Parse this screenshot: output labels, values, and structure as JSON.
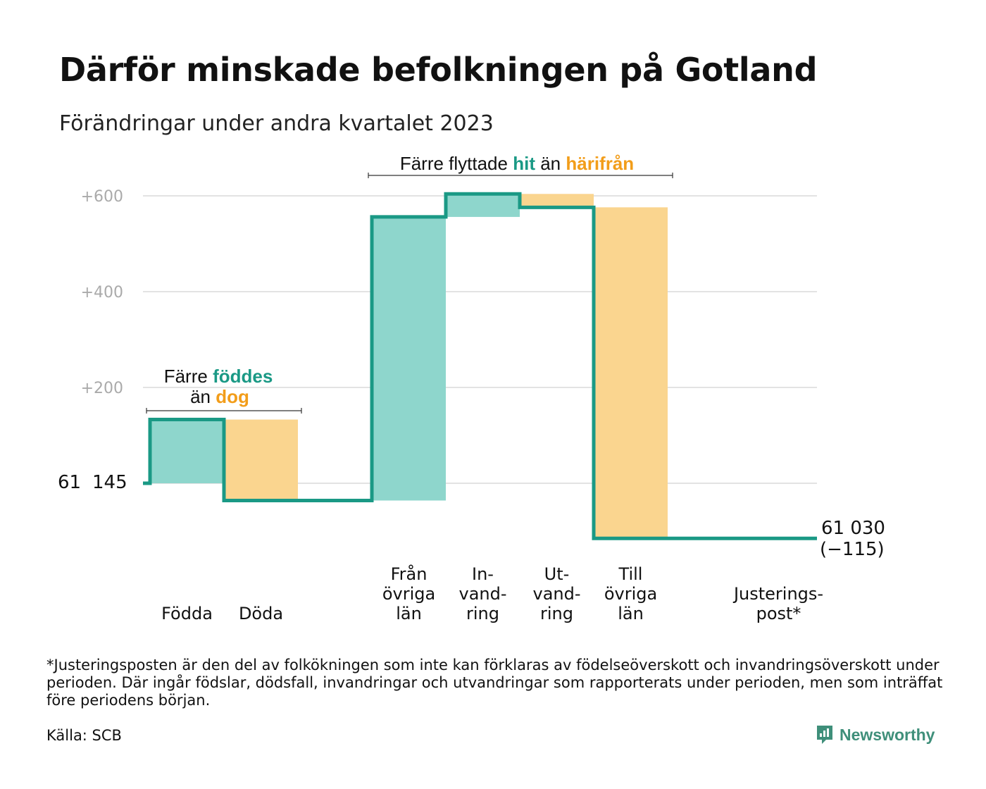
{
  "title": "Därför minskade befolkningen på Gotland",
  "subtitle": "Förändringar under andra kvartalet 2023",
  "colors": {
    "increase": "#8ed6cc",
    "decrease": "#fad58f",
    "line": "#1a9985",
    "grid": "#e3e3e3",
    "accent_teal": "#1a9985",
    "accent_orange": "#f29d1a"
  },
  "annotations": {
    "births": {
      "line1_pre": "Färre",
      "line1_hl": "föddes",
      "line2_pre": "än",
      "line2_hl": "dog"
    },
    "moves": {
      "pre": "Färre flyttade",
      "hl1": "hit",
      "mid": "än",
      "hl2": "härifrån"
    }
  },
  "labels": {
    "start": [
      "61",
      "145"
    ],
    "end_value": "61 030",
    "end_change": "(−115)"
  },
  "chart_data": {
    "type": "waterfall",
    "title": "Därför minskade befolkningen på Gotland",
    "subtitle": "Förändringar under andra kvartalet 2023",
    "start_value": 61145,
    "end_value": 61030,
    "total_change": -115,
    "yticks": [
      {
        "value": 200,
        "label": "+200"
      },
      {
        "value": 400,
        "label": "+400"
      },
      {
        "value": 600,
        "label": "+600"
      }
    ],
    "ylim": [
      -150,
      640
    ],
    "grid": true,
    "categories": [
      {
        "label": [
          "Födda"
        ],
        "change": 133,
        "sign": "increase"
      },
      {
        "label": [
          "Döda"
        ],
        "change": -169,
        "sign": "decrease"
      },
      {
        "label": [],
        "change": 0,
        "sign": "none"
      },
      {
        "label": [
          "Från",
          "övriga",
          "län"
        ],
        "change": 592,
        "sign": "increase"
      },
      {
        "label": [
          "In-",
          "vand-",
          "ring"
        ],
        "change": 48,
        "sign": "increase"
      },
      {
        "label": [
          "Ut-",
          "vand-",
          "ring"
        ],
        "change": -28,
        "sign": "decrease"
      },
      {
        "label": [
          "Till",
          "övriga",
          "län"
        ],
        "change": -691,
        "sign": "decrease"
      },
      {
        "label": [],
        "change": 0,
        "sign": "none"
      },
      {
        "label": [
          "Justerings-",
          "post*"
        ],
        "change": 0,
        "sign": "none"
      }
    ]
  },
  "footnote": "*Justeringsposten är den del av folkökningen som inte kan förklaras av födelseöverskott och invandringsöverskott under perioden. Där ingår födslar, dödsfall, invandringar och utvandringar som rapporterats under perioden, men som inträffat före periodens början.",
  "source": "Källa: SCB",
  "brand": {
    "name": "Newsworthy",
    "icon": "newsworthy-logo-icon"
  }
}
